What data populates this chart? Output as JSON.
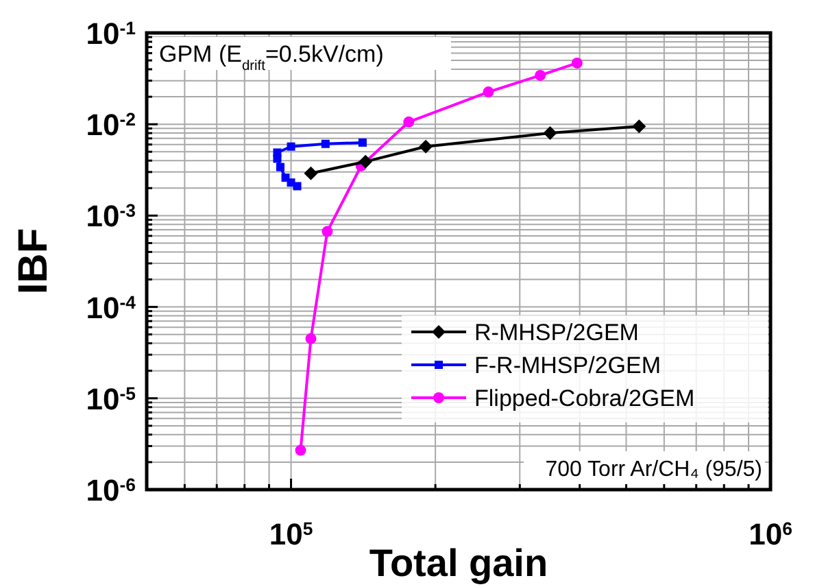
{
  "chart_data": {
    "type": "line",
    "xlabel": "Total gain",
    "ylabel": "IBF",
    "log": "xy",
    "grid": true,
    "legend": "right",
    "line_style": "solid",
    "xlim": [
      50000,
      1000000
    ],
    "xticks": [
      {
        "value": 60000,
        "label": null
      },
      {
        "value": 70000,
        "label": null
      },
      {
        "value": 80000,
        "label": null
      },
      {
        "value": 90000,
        "label": null
      },
      {
        "value": 100000,
        "label": "10$^{5}$"
      },
      {
        "value": 200000,
        "label": null
      },
      {
        "value": 300000,
        "label": null
      },
      {
        "value": 400000,
        "label": null
      },
      {
        "value": 500000,
        "label": null
      },
      {
        "value": 600000,
        "label": null
      },
      {
        "value": 700000,
        "label": null
      },
      {
        "value": 800000,
        "label": null
      },
      {
        "value": 900000,
        "label": null
      },
      {
        "value": 1000000,
        "label": "10$^{6}$"
      }
    ],
    "ylim": [
      1e-06,
      0.1
    ],
    "yticks": [
      {
        "value": 1e-06,
        "label": "10$^{-6}$"
      },
      {
        "value": 2e-06,
        "label": null
      },
      {
        "value": 3e-06,
        "label": null
      },
      {
        "value": 4e-06,
        "label": null
      },
      {
        "value": 5e-06,
        "label": null
      },
      {
        "value": 6e-06,
        "label": null
      },
      {
        "value": 7e-06,
        "label": null
      },
      {
        "value": 8e-06,
        "label": null
      },
      {
        "value": 9e-06,
        "label": null
      },
      {
        "value": 1e-05,
        "label": "10$^{-5}$"
      },
      {
        "value": 2e-05,
        "label": null
      },
      {
        "value": 3e-05,
        "label": null
      },
      {
        "value": 4e-05,
        "label": null
      },
      {
        "value": 5e-05,
        "label": null
      },
      {
        "value": 6e-05,
        "label": null
      },
      {
        "value": 7e-05,
        "label": null
      },
      {
        "value": 8e-05,
        "label": null
      },
      {
        "value": 9e-05,
        "label": null
      },
      {
        "value": 0.0001,
        "label": "10$^{-4}$"
      },
      {
        "value": 0.0002,
        "label": null
      },
      {
        "value": 0.0003,
        "label": null
      },
      {
        "value": 0.0004,
        "label": null
      },
      {
        "value": 0.0005,
        "label": null
      },
      {
        "value": 0.0006,
        "label": null
      },
      {
        "value": 0.0007,
        "label": null
      },
      {
        "value": 0.0008,
        "label": null
      },
      {
        "value": 0.0009,
        "label": null
      },
      {
        "value": 0.001,
        "label": "10$^{-3}$"
      },
      {
        "value": 0.002,
        "label": null
      },
      {
        "value": 0.003,
        "label": null
      },
      {
        "value": 0.004,
        "label": null
      },
      {
        "value": 0.005,
        "label": null
      },
      {
        "value": 0.006,
        "label": null
      },
      {
        "value": 0.007,
        "label": null
      },
      {
        "value": 0.008,
        "label": null
      },
      {
        "value": 0.009,
        "label": null
      },
      {
        "value": 0.01,
        "label": "10$^{-2}$"
      },
      {
        "value": 0.02,
        "label": null
      },
      {
        "value": 0.03,
        "label": null
      },
      {
        "value": 0.04,
        "label": null
      },
      {
        "value": 0.05,
        "label": null
      },
      {
        "value": 0.06,
        "label": null
      },
      {
        "value": 0.07,
        "label": null
      },
      {
        "value": 0.08,
        "label": null
      },
      {
        "value": 0.09,
        "label": null
      },
      {
        "value": 0.1,
        "label": "10$^{-1}$"
      }
    ],
    "series": [
      {
        "name": "R-MHSP/2GEM",
        "color": "#000000",
        "marker": "diamond",
        "x": [
          110000,
          143000,
          191000,
          347000,
          532000
        ],
        "values": [
          0.0029,
          0.0039,
          0.0057,
          0.008,
          0.0095
        ]
      },
      {
        "name": "F-R-MHSP/2GEM",
        "color": "#0000ff",
        "marker": "square",
        "x": [
          103000,
          100000,
          97400,
          95000,
          93600,
          93600,
          100000,
          118000,
          141000
        ],
        "values": [
          0.0021,
          0.0023,
          0.0026,
          0.0034,
          0.0042,
          0.0049,
          0.0057,
          0.0061,
          0.0063
        ]
      },
      {
        "name": "Flipped-Cobra/2GEM",
        "color": "#ff00ff",
        "marker": "circle",
        "x": [
          104700,
          110000,
          119000,
          140000,
          176000,
          258000,
          331000,
          395000
        ],
        "values": [
          2.7e-06,
          4.5e-05,
          0.00067,
          0.0035,
          0.0106,
          0.0226,
          0.0343,
          0.0468
        ]
      }
    ],
    "annotations": [
      "GPM (E$_{drift}$=0.5kV/cm)",
      "700 Torr Ar/CH₄ (95/5)"
    ]
  }
}
